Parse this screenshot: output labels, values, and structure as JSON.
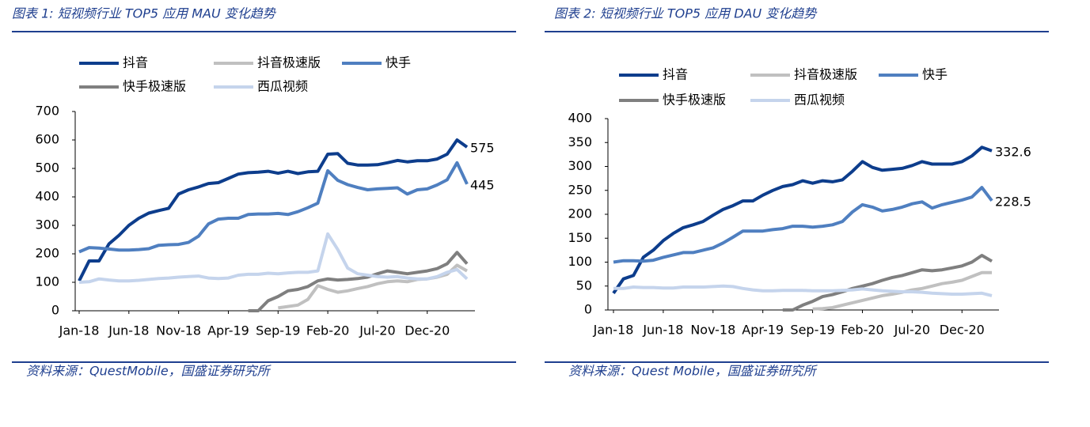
{
  "chart_data": [
    {
      "type": "line",
      "title": "图表 1:  短视频行业 TOP5 应用 MAU 变化趋势",
      "source": "资料来源：QuestMobile，国盛证券研究所",
      "categories": [
        "Jan-18",
        null,
        null,
        null,
        null,
        "Jun-18",
        null,
        null,
        null,
        null,
        "Nov-18",
        null,
        null,
        null,
        null,
        "Apr-19",
        null,
        null,
        null,
        null,
        "Sep-19",
        null,
        null,
        null,
        null,
        "Feb-20",
        null,
        null,
        null,
        null,
        "Jul-20",
        null,
        null,
        null,
        null,
        "Dec-20",
        null,
        null,
        null,
        null
      ],
      "ylim": [
        0,
        700
      ],
      "yticks": [
        0,
        100,
        200,
        300,
        400,
        500,
        600,
        700
      ],
      "series": [
        {
          "name": "抖音",
          "color": "#0d3d8c",
          "values": [
            105,
            175,
            175,
            235,
            265,
            300,
            325,
            343,
            352,
            360,
            410,
            425,
            435,
            447,
            450,
            465,
            480,
            485,
            487,
            490,
            483,
            490,
            482,
            488,
            490,
            550,
            552,
            518,
            512,
            512,
            513,
            520,
            528,
            523,
            527,
            527,
            533,
            550,
            600,
            575
          ]
        },
        {
          "name": "抖音极速版",
          "color": "#c0c0c0",
          "values": [
            null,
            null,
            null,
            null,
            null,
            null,
            null,
            null,
            null,
            null,
            null,
            null,
            null,
            null,
            null,
            null,
            null,
            null,
            null,
            null,
            10,
            15,
            20,
            40,
            88,
            75,
            65,
            70,
            78,
            85,
            95,
            102,
            105,
            102,
            110,
            112,
            118,
            128,
            160,
            140
          ]
        },
        {
          "name": "快手",
          "color": "#4f7fc0",
          "values": [
            207,
            222,
            220,
            217,
            213,
            213,
            215,
            218,
            230,
            232,
            233,
            240,
            262,
            305,
            322,
            325,
            325,
            338,
            340,
            340,
            342,
            338,
            348,
            362,
            378,
            492,
            458,
            443,
            433,
            425,
            428,
            430,
            432,
            410,
            425,
            428,
            442,
            460,
            520,
            445
          ]
        },
        {
          "name": "快手极速版",
          "color": "#7f7f7f",
          "values": [
            null,
            null,
            null,
            null,
            null,
            null,
            null,
            null,
            null,
            null,
            null,
            null,
            null,
            null,
            null,
            null,
            null,
            0,
            0,
            35,
            50,
            70,
            75,
            85,
            105,
            112,
            108,
            110,
            113,
            118,
            130,
            140,
            135,
            130,
            135,
            140,
            148,
            165,
            205,
            165
          ]
        },
        {
          "name": "西瓜视频",
          "color": "#c5d4ec",
          "values": [
            100,
            102,
            112,
            108,
            105,
            105,
            107,
            110,
            113,
            115,
            118,
            120,
            122,
            115,
            113,
            115,
            125,
            128,
            128,
            132,
            130,
            133,
            135,
            135,
            140,
            270,
            215,
            150,
            130,
            125,
            120,
            118,
            120,
            115,
            112,
            112,
            120,
            135,
            145,
            112
          ]
        }
      ],
      "annotations": [
        {
          "text": "575",
          "series": 0
        },
        {
          "text": "445",
          "series": 2
        }
      ]
    },
    {
      "type": "line",
      "title": "图表 2:  短视频行业 TOP5 应用 DAU 变化趋势",
      "source": "资料来源：Quest Mobile，国盛证券研究所",
      "categories": [
        "Jan-18",
        null,
        null,
        null,
        null,
        "Jun-18",
        null,
        null,
        null,
        null,
        "Nov-18",
        null,
        null,
        null,
        null,
        "Apr-19",
        null,
        null,
        null,
        null,
        "Sep-19",
        null,
        null,
        null,
        null,
        "Feb-20",
        null,
        null,
        null,
        null,
        "Jul-20",
        null,
        null,
        null,
        null,
        "Dec-20",
        null,
        null,
        null
      ],
      "ylim": [
        0,
        400
      ],
      "yticks": [
        0,
        50,
        100,
        150,
        200,
        250,
        300,
        350,
        400
      ],
      "series": [
        {
          "name": "抖音",
          "color": "#0d3d8c",
          "values": [
            35,
            65,
            72,
            110,
            125,
            145,
            160,
            172,
            178,
            185,
            198,
            210,
            218,
            228,
            228,
            240,
            250,
            258,
            262,
            270,
            265,
            270,
            268,
            272,
            290,
            310,
            298,
            292,
            294,
            296,
            302,
            310,
            305,
            305,
            305,
            310,
            322,
            340,
            332.6
          ]
        },
        {
          "name": "抖音极速版",
          "color": "#c0c0c0",
          "values": [
            null,
            null,
            null,
            null,
            null,
            null,
            null,
            null,
            null,
            null,
            null,
            null,
            null,
            null,
            null,
            null,
            null,
            null,
            null,
            null,
            2,
            3,
            5,
            10,
            15,
            20,
            25,
            30,
            33,
            37,
            42,
            45,
            50,
            55,
            58,
            62,
            70,
            78,
            78
          ]
        },
        {
          "name": "快手",
          "color": "#4f7fc0",
          "values": [
            100,
            103,
            103,
            102,
            104,
            110,
            115,
            120,
            120,
            125,
            130,
            140,
            152,
            165,
            165,
            165,
            168,
            170,
            175,
            175,
            173,
            175,
            178,
            185,
            205,
            220,
            215,
            207,
            210,
            215,
            222,
            226,
            213,
            220,
            225,
            230,
            236,
            256,
            228.5
          ]
        },
        {
          "name": "快手极速版",
          "color": "#7f7f7f",
          "values": [
            null,
            null,
            null,
            null,
            null,
            null,
            null,
            null,
            null,
            null,
            null,
            null,
            null,
            null,
            null,
            null,
            null,
            0,
            0,
            10,
            18,
            28,
            32,
            38,
            45,
            50,
            55,
            62,
            68,
            72,
            78,
            84,
            82,
            84,
            88,
            92,
            100,
            114,
            102
          ]
        },
        {
          "name": "西瓜视频",
          "color": "#c5d4ec",
          "values": [
            45,
            45,
            48,
            47,
            47,
            46,
            46,
            48,
            48,
            48,
            49,
            50,
            49,
            45,
            42,
            40,
            40,
            41,
            41,
            41,
            40,
            40,
            40,
            41,
            42,
            44,
            42,
            40,
            39,
            38,
            38,
            37,
            35,
            34,
            33,
            33,
            34,
            35,
            30
          ]
        }
      ],
      "annotations": [
        {
          "text": "332.6",
          "series": 0
        },
        {
          "text": "228.5",
          "series": 2
        }
      ]
    }
  ]
}
